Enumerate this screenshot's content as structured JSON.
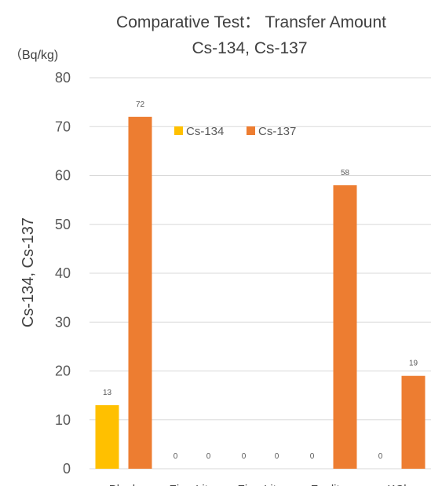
{
  "chart_data": {
    "type": "bar",
    "title": "Comparative Test： Transfer Amount",
    "subtitle": "Cs-134, Cs-137",
    "unit_label": "（Bq/kg)",
    "ylabel": "Cs-134, Cs-137",
    "xlabel": "",
    "ylim": [
      0,
      80
    ],
    "yticks": [
      0,
      10,
      20,
      30,
      40,
      50,
      60,
      70,
      80
    ],
    "grid": true,
    "legend_position": "top-center",
    "categories": [
      "Blank",
      "Zine Lite",
      "Zine Lite",
      "Zeolite",
      "KCl"
    ],
    "series": [
      {
        "name": "Cs-134",
        "color": "#FFC000",
        "values": [
          13,
          0,
          0,
          0,
          0
        ]
      },
      {
        "name": "Cs-137",
        "color": "#ED7D31",
        "values": [
          72,
          0,
          0,
          58,
          19
        ]
      }
    ]
  }
}
